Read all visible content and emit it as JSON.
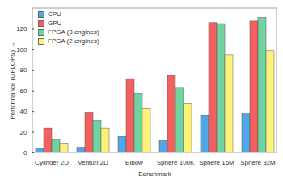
{
  "chart_data": {
    "type": "bar",
    "x_label": "Benchmark",
    "y_label": "Performance (GFLOPS)",
    "categories": [
      "Cylinder 2D",
      "Venturi 2D",
      "Elbow",
      "Sphere 100K",
      "Sphere 16M",
      "Sphere 32M"
    ],
    "series": [
      {
        "name": "CPU",
        "color": "#4ea8e8",
        "values": [
          4,
          5,
          15.5,
          11.5,
          36,
          38
        ]
      },
      {
        "name": "GPU",
        "color": "#f2605f",
        "values": [
          23.5,
          39,
          71.5,
          74.5,
          126,
          127.5
        ]
      },
      {
        "name": "FPGA (3 engines)",
        "color": "#6fd3a2",
        "values": [
          12,
          31,
          57,
          63,
          125,
          131
        ]
      },
      {
        "name": "FPGA (2 engines)",
        "color": "#fff27a",
        "values": [
          9,
          23.5,
          43,
          47.5,
          94.5,
          98.5
        ]
      }
    ],
    "ylim": [
      0,
      140
    ],
    "yticks": [
      0,
      20,
      40,
      60,
      80,
      100,
      120
    ],
    "grid": false,
    "legend": "top-left"
  }
}
